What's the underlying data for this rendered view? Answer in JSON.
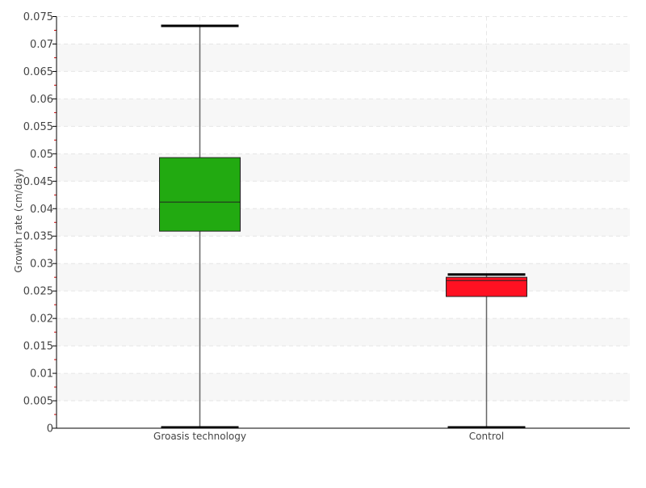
{
  "chart_data": {
    "type": "box",
    "title": "",
    "xlabel": "",
    "ylabel": "Growth rate (cm/day)",
    "ylim": [
      0,
      0.075
    ],
    "yticks": [
      "0",
      "0.005",
      "0.01",
      "0.015",
      "0.02",
      "0.025",
      "0.03",
      "0.035",
      "0.04",
      "0.045",
      "0.05",
      "0.055",
      "0.06",
      "0.065",
      "0.07",
      "0.075"
    ],
    "grid": true,
    "categories": [
      "Groasis technology",
      "Control"
    ],
    "boxes": [
      {
        "category": "Groasis technology",
        "min": 0.0,
        "q1": 0.0359,
        "median": 0.0412,
        "q3": 0.0493,
        "max": 0.0733,
        "color": "#22aa11"
      },
      {
        "category": "Control",
        "min": 0.0,
        "q1": 0.024,
        "median": 0.0269,
        "q3": 0.0275,
        "max": 0.028,
        "color": "#ff1122"
      }
    ]
  }
}
